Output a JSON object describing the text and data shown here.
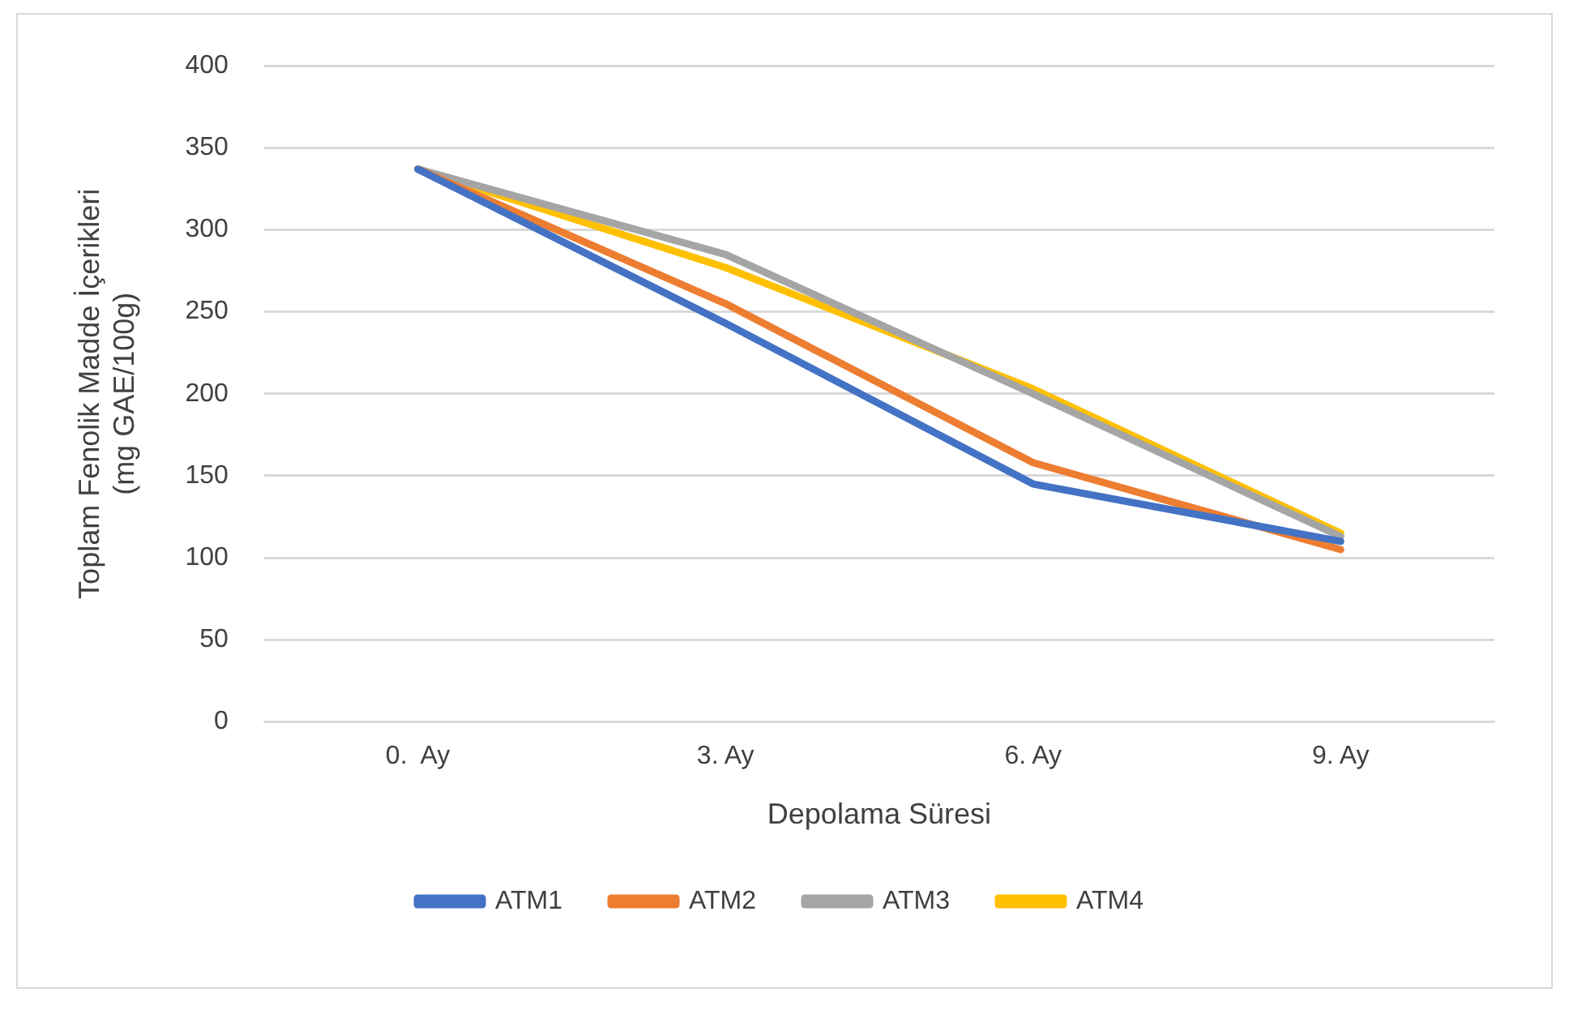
{
  "chart_data": {
    "type": "line",
    "xlabel": "Depolama Süresi",
    "ylabel": "Toplam Fenolik Madde İçerikleri (mg GAE/100g)",
    "categories": [
      "0.  Ay",
      "3. Ay",
      "6. Ay",
      "9. Ay"
    ],
    "series": [
      {
        "name": "ATM1",
        "color": "#4472c4",
        "values": [
          337,
          243,
          145,
          110
        ]
      },
      {
        "name": "ATM2",
        "color": "#ed7d31",
        "values": [
          337,
          255,
          158,
          105
        ]
      },
      {
        "name": "ATM3",
        "color": "#a5a5a5",
        "values": [
          337,
          285,
          200,
          113
        ]
      },
      {
        "name": "ATM4",
        "color": "#ffc000",
        "values": [
          337,
          277,
          203,
          115
        ]
      }
    ],
    "ylim": [
      0,
      400
    ],
    "yticks": [
      0,
      50,
      100,
      150,
      200,
      250,
      300,
      350,
      400
    ],
    "grid": "y",
    "legend": "bottom",
    "marker": "none",
    "line_style": "solid"
  }
}
